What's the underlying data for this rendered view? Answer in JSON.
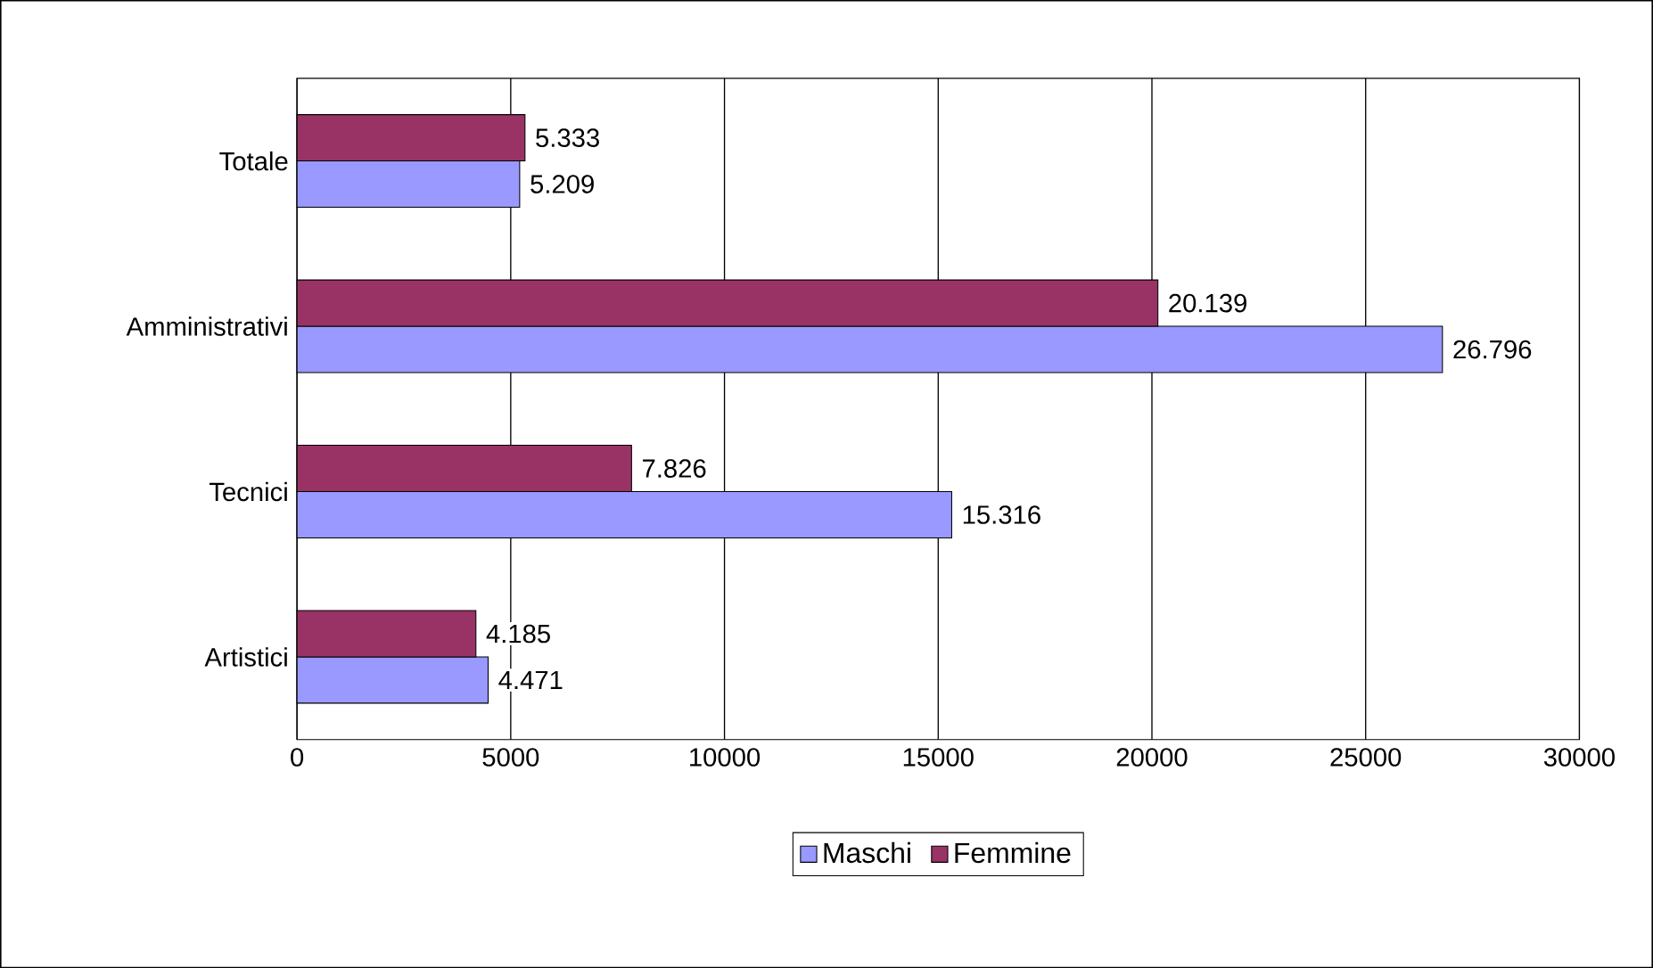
{
  "chart_data": {
    "type": "bar",
    "orientation": "horizontal",
    "categories": [
      "Totale",
      "Amministrativi",
      "Tecnici",
      "Artistici"
    ],
    "series": [
      {
        "name": "Maschi",
        "color": "#9999ff",
        "values": [
          5209,
          26796,
          15316,
          4471
        ],
        "value_labels": [
          "5.209",
          "26.796",
          "15.316",
          "4.471"
        ]
      },
      {
        "name": "Femmine",
        "color": "#993366",
        "values": [
          5333,
          20139,
          7826,
          4185
        ],
        "value_labels": [
          "5.333",
          "20.139",
          "7.826",
          "4.185"
        ]
      }
    ],
    "xlim": [
      0,
      30000
    ],
    "xticks": [
      0,
      5000,
      10000,
      15000,
      20000,
      25000,
      30000
    ],
    "grid": "x",
    "legend": "bottom"
  }
}
